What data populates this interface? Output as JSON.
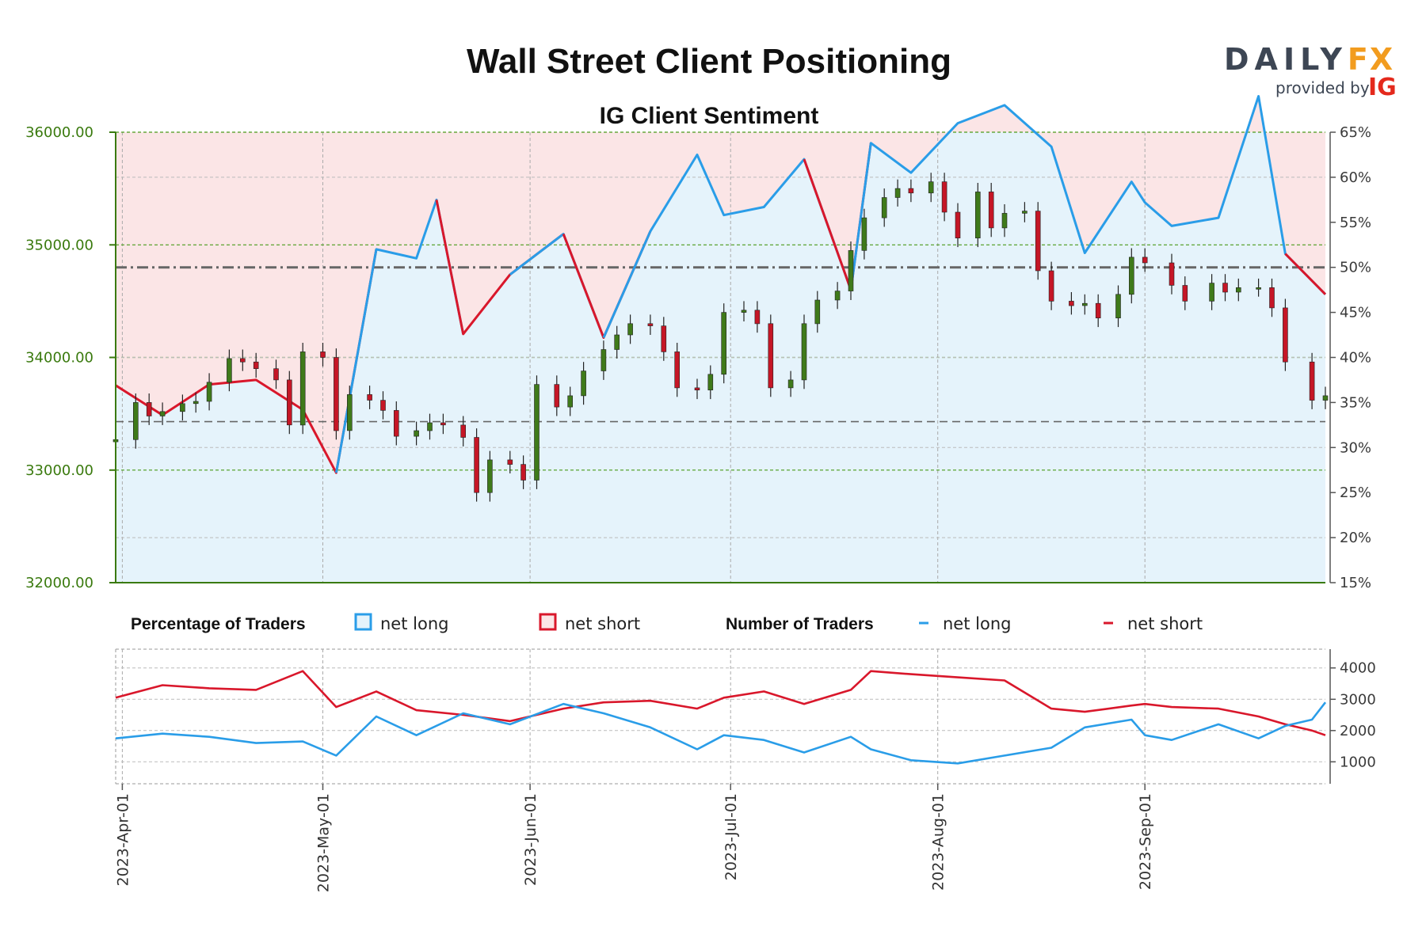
{
  "chart_data": {
    "type": "line",
    "title": "Wall Street Client Positioning",
    "subtitle": "IG Client Sentiment",
    "brand": {
      "name_part1": "DAILY",
      "name_part2": "FX",
      "provided_by": "provided by",
      "ig": "IG",
      "colors": {
        "dark": "#3d4654",
        "orange": "#f29c1f",
        "ig_red": "#e4291c"
      }
    },
    "colors": {
      "net_long": "#2a9de8",
      "net_short": "#d9172b",
      "long_fill": "#e5f3fb",
      "short_fill": "#fbe5e6",
      "candle_up": "#3f7a1a",
      "candle_down": "#c51626",
      "grid_green": "#4a9a1a",
      "left_axis": "#3a7a0e"
    },
    "price_axis": {
      "ticks": [
        "32000.00",
        "33000.00",
        "34000.00",
        "35000.00",
        "36000.00"
      ],
      "ylim": [
        32000,
        36000
      ]
    },
    "sentiment_axis": {
      "ticks": [
        "15%",
        "20%",
        "25%",
        "30%",
        "35%",
        "40%",
        "45%",
        "50%",
        "55%",
        "60%",
        "65%"
      ],
      "ylim": [
        15,
        65
      ]
    },
    "traders_axis": {
      "ticks": [
        "1000",
        "2000",
        "3000",
        "4000"
      ],
      "ylim": [
        300,
        4600
      ]
    },
    "x_ticks": [
      "2023-Apr-01",
      "2023-May-01",
      "2023-Jun-01",
      "2023-Jul-01",
      "2023-Aug-01",
      "2023-Sep-01"
    ],
    "x_range": [
      "2023-03-31",
      "2023-09-28"
    ],
    "reference_lines": {
      "price_dashed": 33430
    },
    "legend": {
      "pct_title": "Percentage of Traders",
      "num_title": "Number of Traders",
      "net_long": "net long",
      "net_short": "net short"
    },
    "net_long_pct": [
      [
        "2023-03-31",
        36.9
      ],
      [
        "2023-04-07",
        33.6
      ],
      [
        "2023-04-14",
        37.0
      ],
      [
        "2023-04-21",
        37.5
      ],
      [
        "2023-04-28",
        34.2
      ],
      [
        "2023-05-03",
        27.2
      ],
      [
        "2023-05-09",
        52.0
      ],
      [
        "2023-05-15",
        51.0
      ],
      [
        "2023-05-18",
        57.5
      ],
      [
        "2023-05-22",
        42.6
      ],
      [
        "2023-05-29",
        49.2
      ],
      [
        "2023-06-06",
        53.7
      ],
      [
        "2023-06-12",
        42.2
      ],
      [
        "2023-06-19",
        54.0
      ],
      [
        "2023-06-26",
        62.5
      ],
      [
        "2023-06-30",
        55.8
      ],
      [
        "2023-07-06",
        56.7
      ],
      [
        "2023-07-12",
        62.0
      ],
      [
        "2023-07-19",
        47.5
      ],
      [
        "2023-07-22",
        63.8
      ],
      [
        "2023-07-28",
        60.5
      ],
      [
        "2023-08-04",
        66.0
      ],
      [
        "2023-08-11",
        68.0
      ],
      [
        "2023-08-18",
        63.4
      ],
      [
        "2023-08-23",
        51.6
      ],
      [
        "2023-08-30",
        59.5
      ],
      [
        "2023-09-01",
        57.2
      ],
      [
        "2023-09-05",
        54.6
      ],
      [
        "2023-09-12",
        55.5
      ],
      [
        "2023-09-18",
        69.0
      ],
      [
        "2023-09-22",
        51.5
      ],
      [
        "2023-09-28",
        47.0
      ]
    ],
    "net_short_pct": [
      [
        "2023-03-31",
        63.1
      ],
      [
        "2023-04-07",
        66.4
      ],
      [
        "2023-04-14",
        63.0
      ],
      [
        "2023-04-21",
        62.5
      ],
      [
        "2023-04-28",
        65.8
      ],
      [
        "2023-05-03",
        72.8
      ],
      [
        "2023-05-09",
        48.0
      ],
      [
        "2023-05-15",
        49.0
      ],
      [
        "2023-05-18",
        42.5
      ],
      [
        "2023-05-22",
        57.4
      ],
      [
        "2023-05-29",
        50.8
      ],
      [
        "2023-06-06",
        46.3
      ],
      [
        "2023-06-12",
        57.8
      ],
      [
        "2023-06-19",
        46.0
      ],
      [
        "2023-06-26",
        37.5
      ],
      [
        "2023-06-30",
        44.2
      ],
      [
        "2023-07-06",
        43.3
      ],
      [
        "2023-07-12",
        38.0
      ],
      [
        "2023-07-19",
        52.5
      ],
      [
        "2023-07-22",
        36.2
      ],
      [
        "2023-07-28",
        39.5
      ],
      [
        "2023-08-04",
        34.0
      ],
      [
        "2023-08-11",
        32.0
      ],
      [
        "2023-08-18",
        36.6
      ],
      [
        "2023-08-23",
        48.4
      ],
      [
        "2023-08-30",
        40.5
      ],
      [
        "2023-09-01",
        42.8
      ],
      [
        "2023-09-05",
        45.4
      ],
      [
        "2023-09-12",
        44.5
      ],
      [
        "2023-09-18",
        31.0
      ],
      [
        "2023-09-22",
        48.5
      ],
      [
        "2023-09-28",
        53.0
      ]
    ],
    "net_long_count": [
      [
        "2023-03-31",
        1750
      ],
      [
        "2023-04-07",
        1900
      ],
      [
        "2023-04-14",
        1800
      ],
      [
        "2023-04-21",
        1600
      ],
      [
        "2023-04-28",
        1650
      ],
      [
        "2023-05-03",
        1200
      ],
      [
        "2023-05-09",
        2450
      ],
      [
        "2023-05-15",
        1850
      ],
      [
        "2023-05-22",
        2550
      ],
      [
        "2023-05-29",
        2200
      ],
      [
        "2023-06-06",
        2850
      ],
      [
        "2023-06-12",
        2550
      ],
      [
        "2023-06-19",
        2100
      ],
      [
        "2023-06-26",
        1400
      ],
      [
        "2023-06-30",
        1850
      ],
      [
        "2023-07-06",
        1700
      ],
      [
        "2023-07-12",
        1300
      ],
      [
        "2023-07-19",
        1800
      ],
      [
        "2023-07-22",
        1400
      ],
      [
        "2023-07-28",
        1050
      ],
      [
        "2023-08-04",
        950
      ],
      [
        "2023-08-11",
        1200
      ],
      [
        "2023-08-18",
        1450
      ],
      [
        "2023-08-23",
        2100
      ],
      [
        "2023-08-30",
        2350
      ],
      [
        "2023-09-01",
        1850
      ],
      [
        "2023-09-05",
        1700
      ],
      [
        "2023-09-12",
        2200
      ],
      [
        "2023-09-18",
        1750
      ],
      [
        "2023-09-22",
        2150
      ],
      [
        "2023-09-26",
        2350
      ],
      [
        "2023-09-28",
        2900
      ]
    ],
    "net_short_count": [
      [
        "2023-03-31",
        3050
      ],
      [
        "2023-04-07",
        3450
      ],
      [
        "2023-04-14",
        3350
      ],
      [
        "2023-04-21",
        3300
      ],
      [
        "2023-04-28",
        3900
      ],
      [
        "2023-05-03",
        2750
      ],
      [
        "2023-05-09",
        3250
      ],
      [
        "2023-05-15",
        2650
      ],
      [
        "2023-05-22",
        2500
      ],
      [
        "2023-05-29",
        2300
      ],
      [
        "2023-06-06",
        2700
      ],
      [
        "2023-06-12",
        2900
      ],
      [
        "2023-06-19",
        2950
      ],
      [
        "2023-06-26",
        2700
      ],
      [
        "2023-06-30",
        3050
      ],
      [
        "2023-07-06",
        3250
      ],
      [
        "2023-07-12",
        2850
      ],
      [
        "2023-07-19",
        3300
      ],
      [
        "2023-07-22",
        3900
      ],
      [
        "2023-07-28",
        3800
      ],
      [
        "2023-08-04",
        3700
      ],
      [
        "2023-08-11",
        3600
      ],
      [
        "2023-08-18",
        2700
      ],
      [
        "2023-08-23",
        2600
      ],
      [
        "2023-08-30",
        2800
      ],
      [
        "2023-09-01",
        2850
      ],
      [
        "2023-09-05",
        2750
      ],
      [
        "2023-09-12",
        2700
      ],
      [
        "2023-09-18",
        2450
      ],
      [
        "2023-09-22",
        2200
      ],
      [
        "2023-09-26",
        2000
      ],
      [
        "2023-09-28",
        1850
      ]
    ],
    "price": [
      [
        "2023-03-31",
        33270
      ],
      [
        "2023-04-03",
        33600
      ],
      [
        "2023-04-05",
        33480
      ],
      [
        "2023-04-07",
        33520
      ],
      [
        "2023-04-10",
        33590
      ],
      [
        "2023-04-12",
        33610
      ],
      [
        "2023-04-14",
        33780
      ],
      [
        "2023-04-17",
        33990
      ],
      [
        "2023-04-19",
        33960
      ],
      [
        "2023-04-21",
        33900
      ],
      [
        "2023-04-24",
        33800
      ],
      [
        "2023-04-26",
        33400
      ],
      [
        "2023-04-28",
        34050
      ],
      [
        "2023-05-01",
        34000
      ],
      [
        "2023-05-03",
        33350
      ],
      [
        "2023-05-05",
        33670
      ],
      [
        "2023-05-08",
        33620
      ],
      [
        "2023-05-10",
        33530
      ],
      [
        "2023-05-12",
        33300
      ],
      [
        "2023-05-15",
        33350
      ],
      [
        "2023-05-17",
        33420
      ],
      [
        "2023-05-19",
        33400
      ],
      [
        "2023-05-22",
        33290
      ],
      [
        "2023-05-24",
        32800
      ],
      [
        "2023-05-26",
        33090
      ],
      [
        "2023-05-29",
        33050
      ],
      [
        "2023-05-31",
        32910
      ],
      [
        "2023-06-02",
        33760
      ],
      [
        "2023-06-05",
        33560
      ],
      [
        "2023-06-07",
        33660
      ],
      [
        "2023-06-09",
        33880
      ],
      [
        "2023-06-12",
        34070
      ],
      [
        "2023-06-14",
        34200
      ],
      [
        "2023-06-16",
        34300
      ],
      [
        "2023-06-19",
        34280
      ],
      [
        "2023-06-21",
        34050
      ],
      [
        "2023-06-23",
        33730
      ],
      [
        "2023-06-26",
        33710
      ],
      [
        "2023-06-28",
        33850
      ],
      [
        "2023-06-30",
        34400
      ],
      [
        "2023-07-03",
        34420
      ],
      [
        "2023-07-05",
        34300
      ],
      [
        "2023-07-07",
        33730
      ],
      [
        "2023-07-10",
        33800
      ],
      [
        "2023-07-12",
        34300
      ],
      [
        "2023-07-14",
        34510
      ],
      [
        "2023-07-17",
        34590
      ],
      [
        "2023-07-19",
        34950
      ],
      [
        "2023-07-21",
        35240
      ],
      [
        "2023-07-24",
        35420
      ],
      [
        "2023-07-26",
        35500
      ],
      [
        "2023-07-28",
        35460
      ],
      [
        "2023-07-31",
        35560
      ],
      [
        "2023-08-02",
        35290
      ],
      [
        "2023-08-04",
        35060
      ],
      [
        "2023-08-07",
        35470
      ],
      [
        "2023-08-09",
        35150
      ],
      [
        "2023-08-11",
        35280
      ],
      [
        "2023-08-14",
        35300
      ],
      [
        "2023-08-16",
        34770
      ],
      [
        "2023-08-18",
        34500
      ],
      [
        "2023-08-21",
        34460
      ],
      [
        "2023-08-23",
        34480
      ],
      [
        "2023-08-25",
        34350
      ],
      [
        "2023-08-28",
        34560
      ],
      [
        "2023-08-30",
        34890
      ],
      [
        "2023-09-01",
        34840
      ],
      [
        "2023-09-05",
        34640
      ],
      [
        "2023-09-07",
        34500
      ],
      [
        "2023-09-11",
        34660
      ],
      [
        "2023-09-13",
        34580
      ],
      [
        "2023-09-15",
        34620
      ],
      [
        "2023-09-18",
        34620
      ],
      [
        "2023-09-20",
        34440
      ],
      [
        "2023-09-22",
        33960
      ],
      [
        "2023-09-26",
        33620
      ],
      [
        "2023-09-28",
        33660
      ]
    ]
  }
}
